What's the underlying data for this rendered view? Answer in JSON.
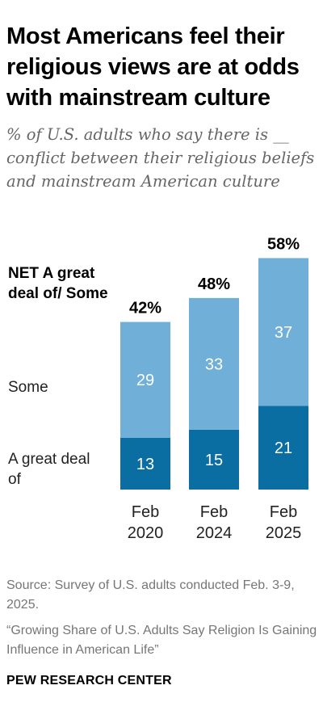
{
  "header": {
    "title": "Most Americans feel their religious views are at odds with mainstream culture",
    "subtitle": "% of U.S. adults who say there is __ conflict between their religious beliefs and mainstream American culture"
  },
  "legend": {
    "net": "NET A great deal of/ Some",
    "some": "Some",
    "great": "A great deal of"
  },
  "chart_data": {
    "type": "bar",
    "stacked": true,
    "categories": [
      "Feb 2020",
      "Feb 2024",
      "Feb 2025"
    ],
    "category_lines": [
      [
        "Feb",
        "2020"
      ],
      [
        "Feb",
        "2024"
      ],
      [
        "Feb",
        "2025"
      ]
    ],
    "series": [
      {
        "name": "A great deal of",
        "values": [
          13,
          15,
          21
        ],
        "color": "#0b6ea3"
      },
      {
        "name": "Some",
        "values": [
          29,
          33,
          37
        ],
        "color": "#6fafd8"
      }
    ],
    "totals": [
      42,
      48,
      58
    ],
    "total_labels": [
      "42%",
      "48%",
      "58%"
    ],
    "ylim": [
      0,
      58
    ]
  },
  "footer": {
    "source": "Source: Survey of U.S. adults conducted Feb. 3-9, 2025.",
    "report": "“Growing Share of U.S. Adults Say Religion Is Gaining Influence in American Life”",
    "org": "PEW RESEARCH CENTER"
  }
}
